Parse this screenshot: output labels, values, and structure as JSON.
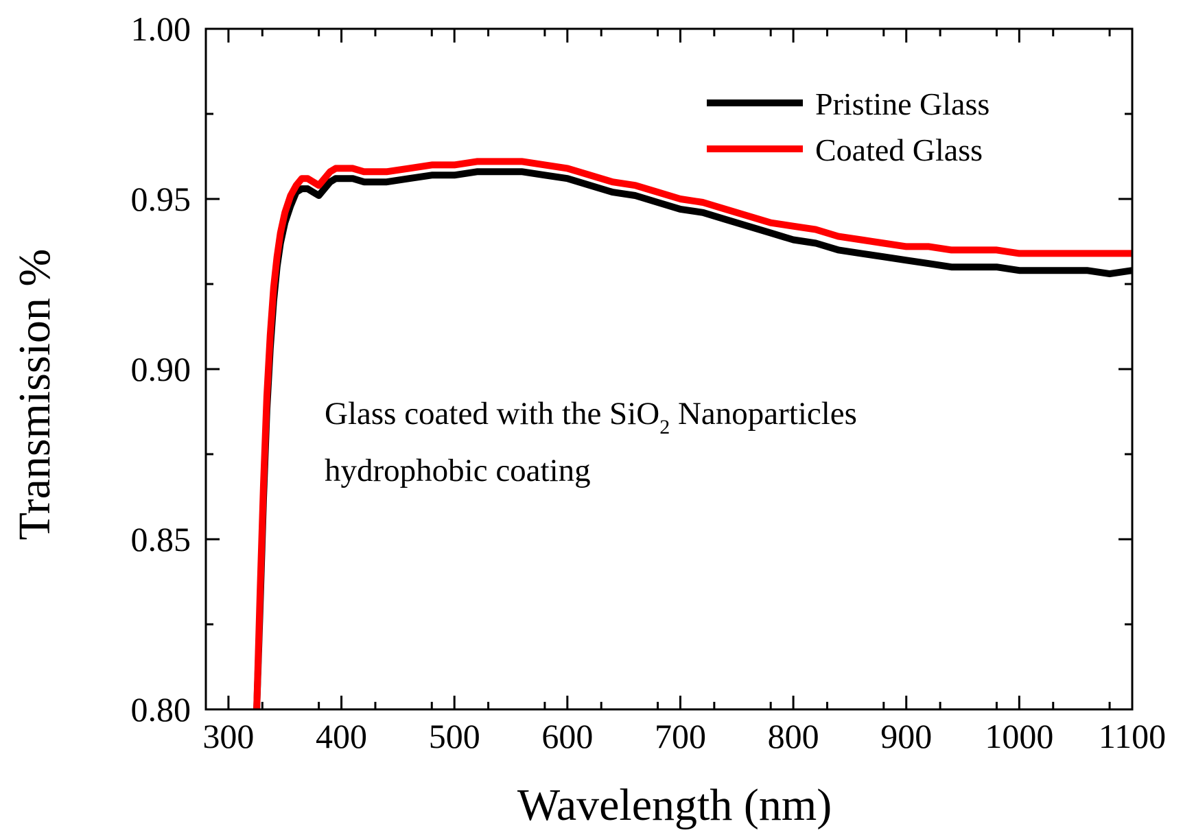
{
  "chart_data": {
    "type": "line",
    "title": "",
    "xlabel": "Wavelength (nm)",
    "ylabel": "Transmission %",
    "xlim": [
      280,
      1100
    ],
    "ylim": [
      0.8,
      1.0
    ],
    "xticks": [
      300,
      400,
      500,
      600,
      700,
      800,
      900,
      1000,
      1100
    ],
    "xtick_labels": [
      "300",
      "400",
      "500",
      "600",
      "700",
      "800",
      "900",
      "1000",
      "1100"
    ],
    "yticks": [
      0.8,
      0.85,
      0.9,
      0.95,
      1.0
    ],
    "ytick_labels": [
      "0.80",
      "0.85",
      "0.90",
      "0.95",
      "1.00"
    ],
    "legend_position": "top-right",
    "annotation": {
      "line1_prefix": "Glass coated with the SiO",
      "line1_subscript": "2",
      "line1_suffix": " Nanoparticles",
      "line2": "hydrophobic coating"
    },
    "series": [
      {
        "name": "Pristine Glass",
        "color": "#000000",
        "x": [
          325,
          328,
          331,
          334,
          337,
          340,
          343,
          346,
          350,
          355,
          360,
          365,
          370,
          375,
          380,
          385,
          390,
          395,
          400,
          410,
          420,
          440,
          460,
          480,
          500,
          520,
          540,
          560,
          580,
          600,
          620,
          640,
          660,
          680,
          700,
          720,
          740,
          760,
          780,
          800,
          820,
          840,
          860,
          880,
          900,
          920,
          940,
          960,
          980,
          1000,
          1020,
          1040,
          1060,
          1080,
          1100
        ],
        "values": [
          0.8,
          0.83,
          0.862,
          0.888,
          0.906,
          0.92,
          0.93,
          0.937,
          0.943,
          0.948,
          0.952,
          0.953,
          0.953,
          0.952,
          0.951,
          0.953,
          0.955,
          0.956,
          0.956,
          0.956,
          0.955,
          0.955,
          0.956,
          0.957,
          0.957,
          0.958,
          0.958,
          0.958,
          0.957,
          0.956,
          0.954,
          0.952,
          0.951,
          0.949,
          0.947,
          0.946,
          0.944,
          0.942,
          0.94,
          0.938,
          0.937,
          0.935,
          0.934,
          0.933,
          0.932,
          0.931,
          0.93,
          0.93,
          0.93,
          0.929,
          0.929,
          0.929,
          0.929,
          0.928,
          0.929
        ]
      },
      {
        "name": "Coated Glass",
        "color": "#ff0000",
        "x": [
          325,
          328,
          331,
          334,
          337,
          340,
          343,
          346,
          350,
          355,
          360,
          365,
          370,
          375,
          380,
          385,
          390,
          395,
          400,
          410,
          420,
          440,
          460,
          480,
          500,
          520,
          540,
          560,
          580,
          600,
          620,
          640,
          660,
          680,
          700,
          720,
          740,
          760,
          780,
          800,
          820,
          840,
          860,
          880,
          900,
          920,
          940,
          960,
          980,
          1000,
          1020,
          1040,
          1060,
          1080,
          1100
        ],
        "values": [
          0.8,
          0.834,
          0.866,
          0.892,
          0.91,
          0.924,
          0.933,
          0.94,
          0.946,
          0.951,
          0.954,
          0.956,
          0.956,
          0.955,
          0.954,
          0.956,
          0.958,
          0.959,
          0.959,
          0.959,
          0.958,
          0.958,
          0.959,
          0.96,
          0.96,
          0.961,
          0.961,
          0.961,
          0.96,
          0.959,
          0.957,
          0.955,
          0.954,
          0.952,
          0.95,
          0.949,
          0.947,
          0.945,
          0.943,
          0.942,
          0.941,
          0.939,
          0.938,
          0.937,
          0.936,
          0.936,
          0.935,
          0.935,
          0.935,
          0.934,
          0.934,
          0.934,
          0.934,
          0.934,
          0.934
        ]
      }
    ]
  }
}
